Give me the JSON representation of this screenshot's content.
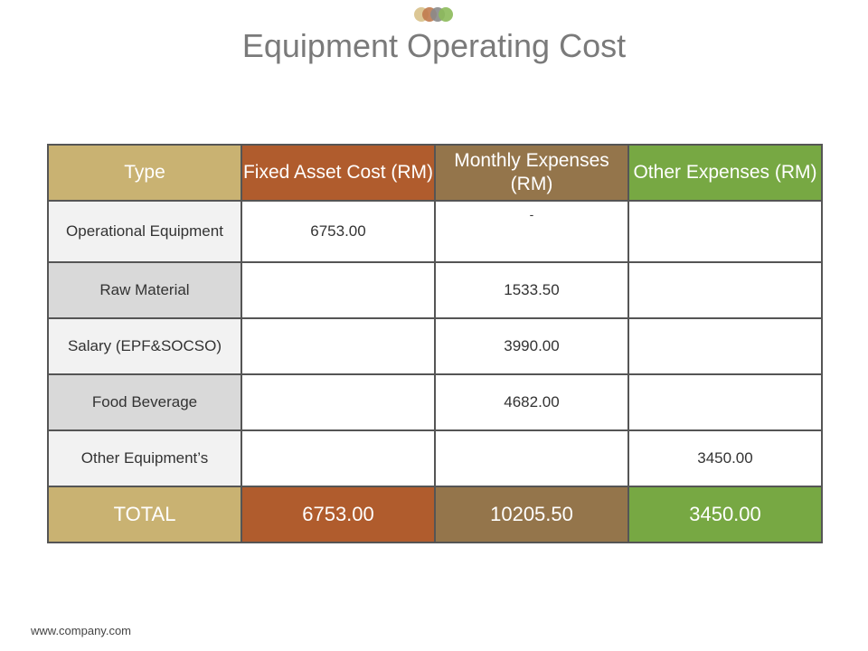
{
  "title": "Equipment Operating Cost",
  "colors": {
    "type": "#c9b272",
    "fixed": "#b05c2d",
    "monthly": "#94754b",
    "other": "#77a843"
  },
  "table": {
    "headers": {
      "type": "Type",
      "fixed": "Fixed Asset Cost (RM)",
      "monthly": "Monthly Expenses (RM)",
      "other": "Other Expenses (RM)"
    },
    "rows": [
      {
        "type": "Operational Equipment",
        "fixed": "6753.00",
        "monthly": "-",
        "other": ""
      },
      {
        "type": "Raw Material",
        "fixed": "",
        "monthly": "1533.50",
        "other": ""
      },
      {
        "type": "Salary (EPF&SOCSO)",
        "fixed": "",
        "monthly": "3990.00",
        "other": ""
      },
      {
        "type": "Food Beverage",
        "fixed": "",
        "monthly": "4682.00",
        "other": ""
      },
      {
        "type": "Other Equipment’s",
        "fixed": "",
        "monthly": "",
        "other": "3450.00"
      }
    ],
    "total": {
      "type": "TOTAL",
      "fixed": "6753.00",
      "monthly": "10205.50",
      "other": "3450.00"
    }
  },
  "footer": "www.company.com"
}
